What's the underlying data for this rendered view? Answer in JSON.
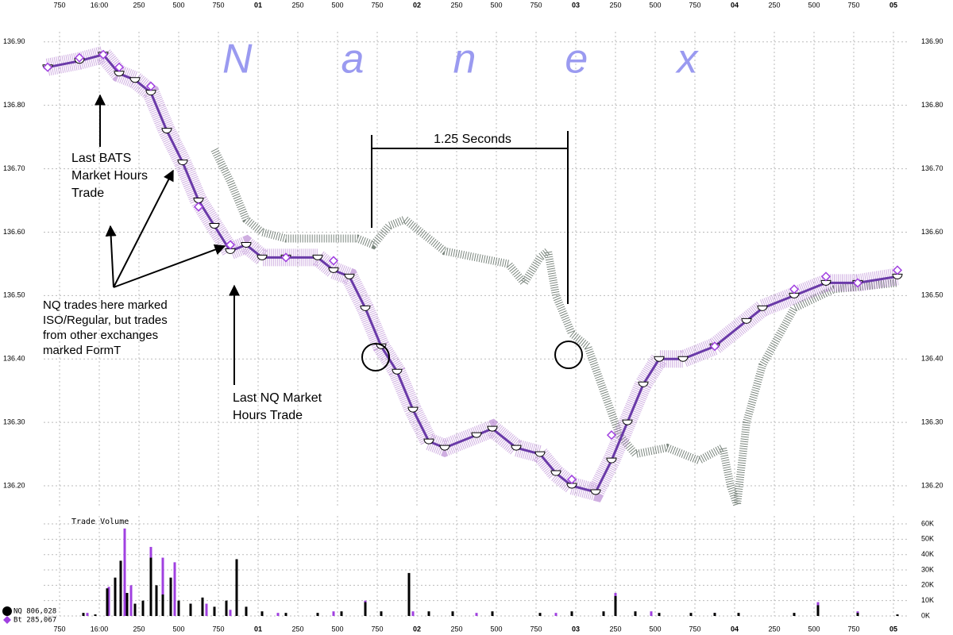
{
  "chart_data": [
    {
      "type": "line",
      "watermark": "Nanex",
      "annotations": [
        {
          "lines": [
            "Last BATS",
            "Market Hours",
            "Trade"
          ]
        },
        {
          "lines": [
            "NQ trades here marked",
            "ISO/Regular, but trades",
            "from other exchanges",
            "marked FormT"
          ]
        },
        {
          "lines": [
            "Last NQ Market",
            "Hours Trade"
          ]
        },
        {
          "lines": [
            "1.25 Seconds"
          ]
        }
      ],
      "xlim": [
        -350,
        5100
      ],
      "xticks": [
        {
          "value": -250,
          "label": "750"
        },
        {
          "value": 0,
          "label": "16:00"
        },
        250,
        500,
        750,
        {
          "value": 1000,
          "label": "01"
        },
        {
          "value": 1250,
          "label": "250"
        },
        {
          "value": 1500,
          "label": "500"
        },
        {
          "value": 1750,
          "label": "750"
        },
        {
          "value": 2000,
          "label": "02"
        },
        {
          "value": 2250,
          "label": "250"
        },
        {
          "value": 2500,
          "label": "500"
        },
        {
          "value": 2750,
          "label": "750"
        },
        {
          "value": 3000,
          "label": "03"
        },
        {
          "value": 3250,
          "label": "250"
        },
        {
          "value": 3500,
          "label": "500"
        },
        {
          "value": 3750,
          "label": "750"
        },
        {
          "value": 4000,
          "label": "04"
        },
        {
          "value": 4250,
          "label": "250"
        },
        {
          "value": 4500,
          "label": "500"
        },
        {
          "value": 4750,
          "label": "750"
        },
        {
          "value": 5000,
          "label": "05"
        }
      ],
      "ylim": [
        136.165,
        136.916
      ],
      "yticks": [
        {
          "value": 136.2,
          "label": "136.20"
        },
        {
          "value": 136.3,
          "label": "136.30"
        },
        {
          "value": 136.4,
          "label": "136.40"
        },
        {
          "value": 136.5,
          "label": "136.50"
        },
        {
          "value": 136.6,
          "label": "136.60"
        },
        {
          "value": 136.7,
          "label": "136.70"
        },
        {
          "value": 136.8,
          "label": "136.80"
        },
        {
          "value": 136.9,
          "label": "136.90"
        }
      ],
      "grid": true,
      "series": [
        {
          "color": "#7a857d",
          "style": "band",
          "x": [
            725,
            825,
            925,
            1025,
            1175,
            1475,
            1625,
            1725,
            1825,
            1925,
            2025,
            2175,
            2375,
            2575,
            2675,
            2775,
            2825,
            2875,
            2975,
            3075,
            3175,
            3275,
            3375,
            3575,
            3775,
            3925,
            3975,
            4015,
            4075,
            4175,
            4375,
            4625,
            5025
          ],
          "values": [
            136.73,
            136.68,
            136.62,
            136.6,
            136.59,
            136.59,
            136.59,
            136.58,
            136.61,
            136.62,
            136.6,
            136.57,
            136.56,
            136.55,
            136.52,
            136.56,
            136.57,
            136.5,
            136.44,
            136.42,
            136.35,
            136.28,
            136.25,
            136.26,
            136.24,
            136.26,
            136.2,
            136.17,
            136.3,
            136.39,
            136.48,
            136.51,
            136.52
          ]
        },
        {
          "color": "#000000",
          "style": "trades",
          "x": [
            -325,
            -125,
            25,
            125,
            225,
            325,
            425,
            525,
            625,
            725,
            825,
            925,
            1025,
            1175,
            1375,
            1475,
            1575,
            1675,
            1775,
            1875,
            1975,
            2075,
            2175,
            2375,
            2475,
            2625,
            2775,
            2875,
            2975,
            3125,
            3225,
            3325,
            3425,
            3525,
            3675,
            3875,
            4075,
            4175,
            4375,
            4575,
            4775,
            5025
          ],
          "values": [
            136.86,
            136.87,
            136.88,
            136.85,
            136.84,
            136.82,
            136.76,
            136.71,
            136.65,
            136.61,
            136.57,
            136.58,
            136.56,
            136.56,
            136.56,
            136.54,
            136.53,
            136.48,
            136.42,
            136.38,
            136.32,
            136.27,
            136.26,
            136.28,
            136.29,
            136.26,
            136.25,
            136.22,
            136.2,
            136.19,
            136.24,
            136.3,
            136.36,
            136.4,
            136.4,
            136.42,
            136.46,
            136.48,
            136.5,
            136.52,
            136.52,
            136.53
          ]
        },
        {
          "color": "#a040e0",
          "style": "diamonds",
          "x": [
            -325,
            -125,
            25,
            125,
            325,
            625,
            825,
            1175,
            1475,
            2975,
            3225,
            3875,
            4375,
            4575,
            4775,
            5025
          ],
          "values": [
            136.86,
            136.875,
            136.88,
            136.86,
            136.83,
            136.64,
            136.58,
            136.56,
            136.555,
            136.21,
            136.28,
            136.42,
            136.51,
            136.53,
            136.52,
            136.54
          ]
        }
      ]
    },
    {
      "type": "bar",
      "title": "Trade Volume",
      "ylim": [
        0,
        65200
      ],
      "yticks": [
        {
          "value": 0,
          "label": "0K"
        },
        {
          "value": 10000,
          "label": "10K"
        },
        {
          "value": 20000,
          "label": "20K"
        },
        {
          "value": 30000,
          "label": "30K"
        },
        {
          "value": 40000,
          "label": "40K"
        },
        {
          "value": 50000,
          "label": "50K"
        },
        {
          "value": 60000,
          "label": "60K"
        }
      ],
      "grid": true,
      "series": [
        {
          "name": "Bt 285,067",
          "color": "#a040e0",
          "marker": "diamond",
          "x": [
            -75,
            60,
            160,
            200,
            325,
            400,
            475,
            575,
            675,
            825,
            1125,
            1475,
            1675,
            1975,
            2375,
            2875,
            3250,
            3475,
            3875,
            4525,
            4775
          ],
          "values": [
            2000,
            19000,
            57000,
            20000,
            45000,
            38000,
            35000,
            8000,
            8000,
            4000,
            2000,
            3000,
            10000,
            3000,
            2000,
            2000,
            15000,
            3000,
            2000,
            9000,
            3000
          ]
        },
        {
          "name": "NQ 806,028",
          "color": "#000000",
          "marker": "circle",
          "x": [
            -100,
            -25,
            50,
            100,
            135,
            175,
            225,
            275,
            325,
            360,
            400,
            450,
            500,
            575,
            650,
            725,
            800,
            865,
            925,
            1025,
            1175,
            1375,
            1525,
            1675,
            1775,
            1950,
            2075,
            2225,
            2475,
            2775,
            2975,
            3175,
            3250,
            3375,
            3525,
            3725,
            3875,
            4025,
            4375,
            4525,
            4775,
            5025
          ],
          "values": [
            2000,
            1000,
            18000,
            25000,
            36000,
            15000,
            8000,
            10000,
            38000,
            20000,
            14000,
            25000,
            10000,
            8000,
            12000,
            6000,
            10000,
            37000,
            6000,
            3000,
            2000,
            2000,
            3000,
            9000,
            3000,
            28000,
            3000,
            3000,
            3000,
            2000,
            3000,
            3000,
            13000,
            3000,
            2000,
            2000,
            2000,
            2000,
            2000,
            7000,
            2000,
            1000
          ]
        }
      ]
    }
  ]
}
